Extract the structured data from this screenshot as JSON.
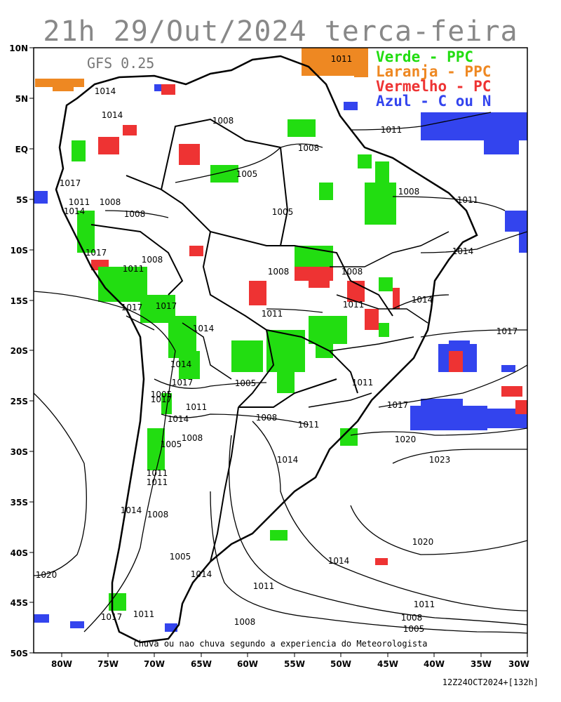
{
  "title": "21h 29/Out/2024 terca-feira",
  "model": "GFS 0.25",
  "legend": [
    {
      "text": "Verde - PPC",
      "color": "#22dd11"
    },
    {
      "text": "Laranja - PPC",
      "color": "#ee8822"
    },
    {
      "text": "Vermelho - PC",
      "color": "#ee3333"
    },
    {
      "text": "Azul - C ou N",
      "color": "#3344ee"
    }
  ],
  "footnote": "Chuva ou nao chuva segundo a experiencia do Meteorologista",
  "run_info": "12Z24OCT2024+[132h]",
  "axes": {
    "lat_labels": [
      "10N",
      "5N",
      "EQ",
      "5S",
      "10S",
      "15S",
      "20S",
      "25S",
      "30S",
      "35S",
      "40S",
      "45S",
      "50S"
    ],
    "lon_labels": [
      "80W",
      "75W",
      "70W",
      "65W",
      "60W",
      "55W",
      "50W",
      "45W",
      "40W",
      "35W",
      "30W"
    ]
  },
  "isobar_labels": [
    "1014",
    "1011",
    "1014",
    "1008",
    "1008",
    "1011",
    "1017",
    "1011",
    "1008",
    "1014",
    "1005",
    "1008",
    "1008",
    "1011",
    "1017",
    "1008",
    "1014",
    "1011",
    "1008",
    "1005",
    "1011",
    "1008",
    "1011",
    "1014",
    "1017",
    "1017",
    "1014",
    "1017",
    "1014",
    "1017",
    "1011",
    "1017",
    "1005",
    "1014",
    "1017",
    "1011",
    "1014",
    "1008",
    "1005",
    "1008",
    "1011",
    "1020",
    "1023",
    "1014",
    "1011",
    "1020",
    "1014",
    "1008",
    "1005",
    "1020",
    "1014",
    "1011",
    "1005",
    "1008",
    "1011",
    "1017",
    "1011",
    "1011",
    "1008",
    "1005"
  ]
}
